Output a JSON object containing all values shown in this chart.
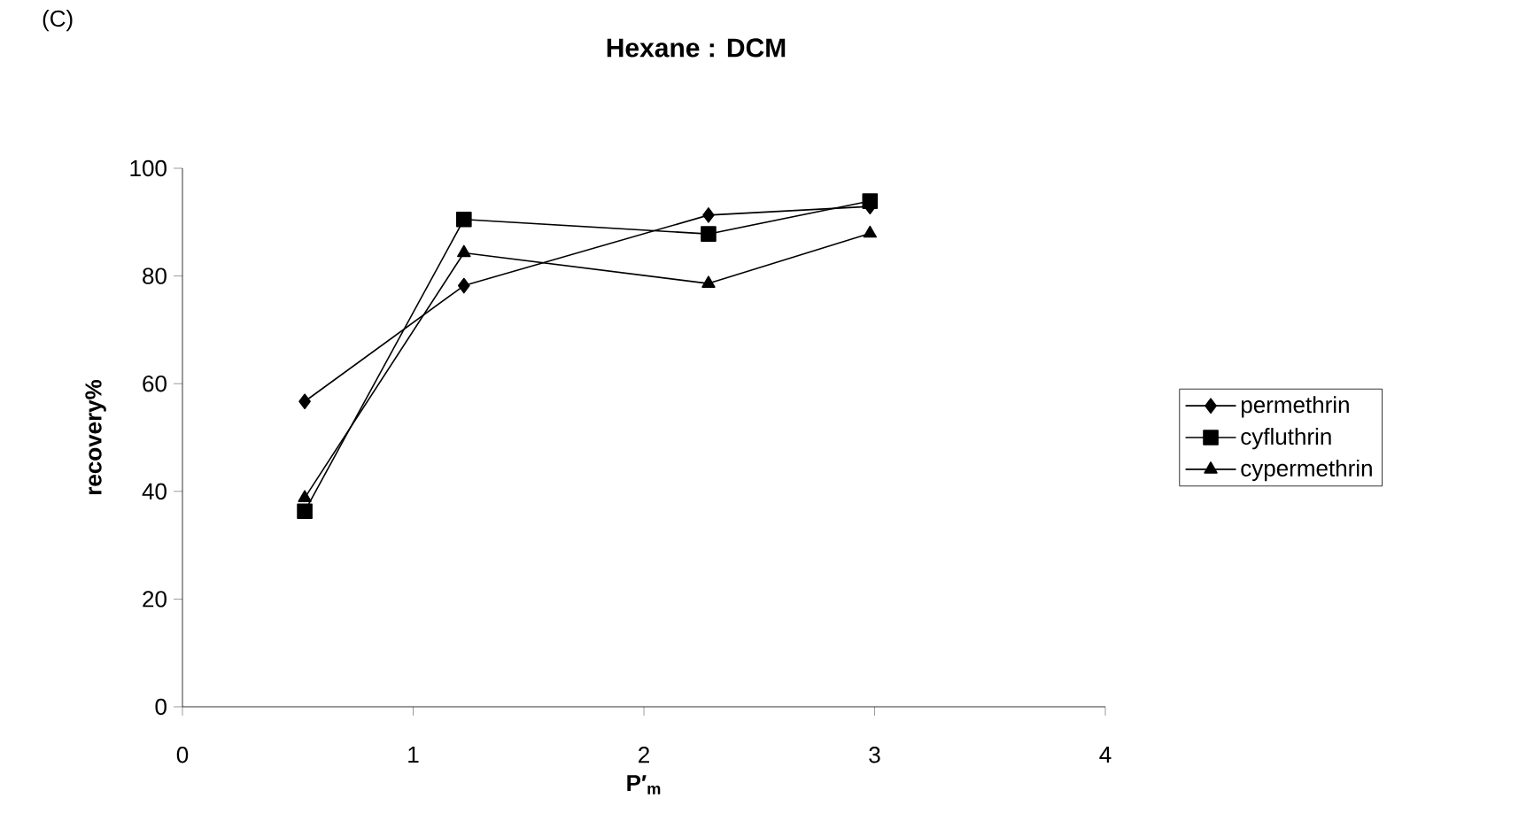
{
  "chart_data": {
    "type": "line",
    "title": "Hexane : DCM",
    "annotations": [
      "(C)"
    ],
    "xlabel": "P′$_{m}$",
    "ylabel": "recovery%",
    "x": [
      0.53,
      1.22,
      2.28,
      2.98
    ],
    "series": [
      {
        "name": "permethrin",
        "color": "#000000",
        "marker": "diamond",
        "values": [
          56.7,
          78.2,
          91.3,
          92.9
        ]
      },
      {
        "name": "cyfluthrin",
        "color": "#000000",
        "marker": "square",
        "values": [
          36.3,
          90.5,
          87.8,
          93.9
        ]
      },
      {
        "name": "cypermethrin",
        "color": "#000000",
        "marker": "triangle",
        "values": [
          38.8,
          84.3,
          78.6,
          87.9
        ]
      }
    ],
    "xlim": [
      0,
      4
    ],
    "xticks": [
      0,
      1,
      2,
      3,
      4
    ],
    "ylim": [
      0,
      100
    ],
    "yticks": [
      0,
      20,
      40,
      60,
      80,
      100
    ],
    "grid": false,
    "legend": "right",
    "line_style": "solid"
  }
}
